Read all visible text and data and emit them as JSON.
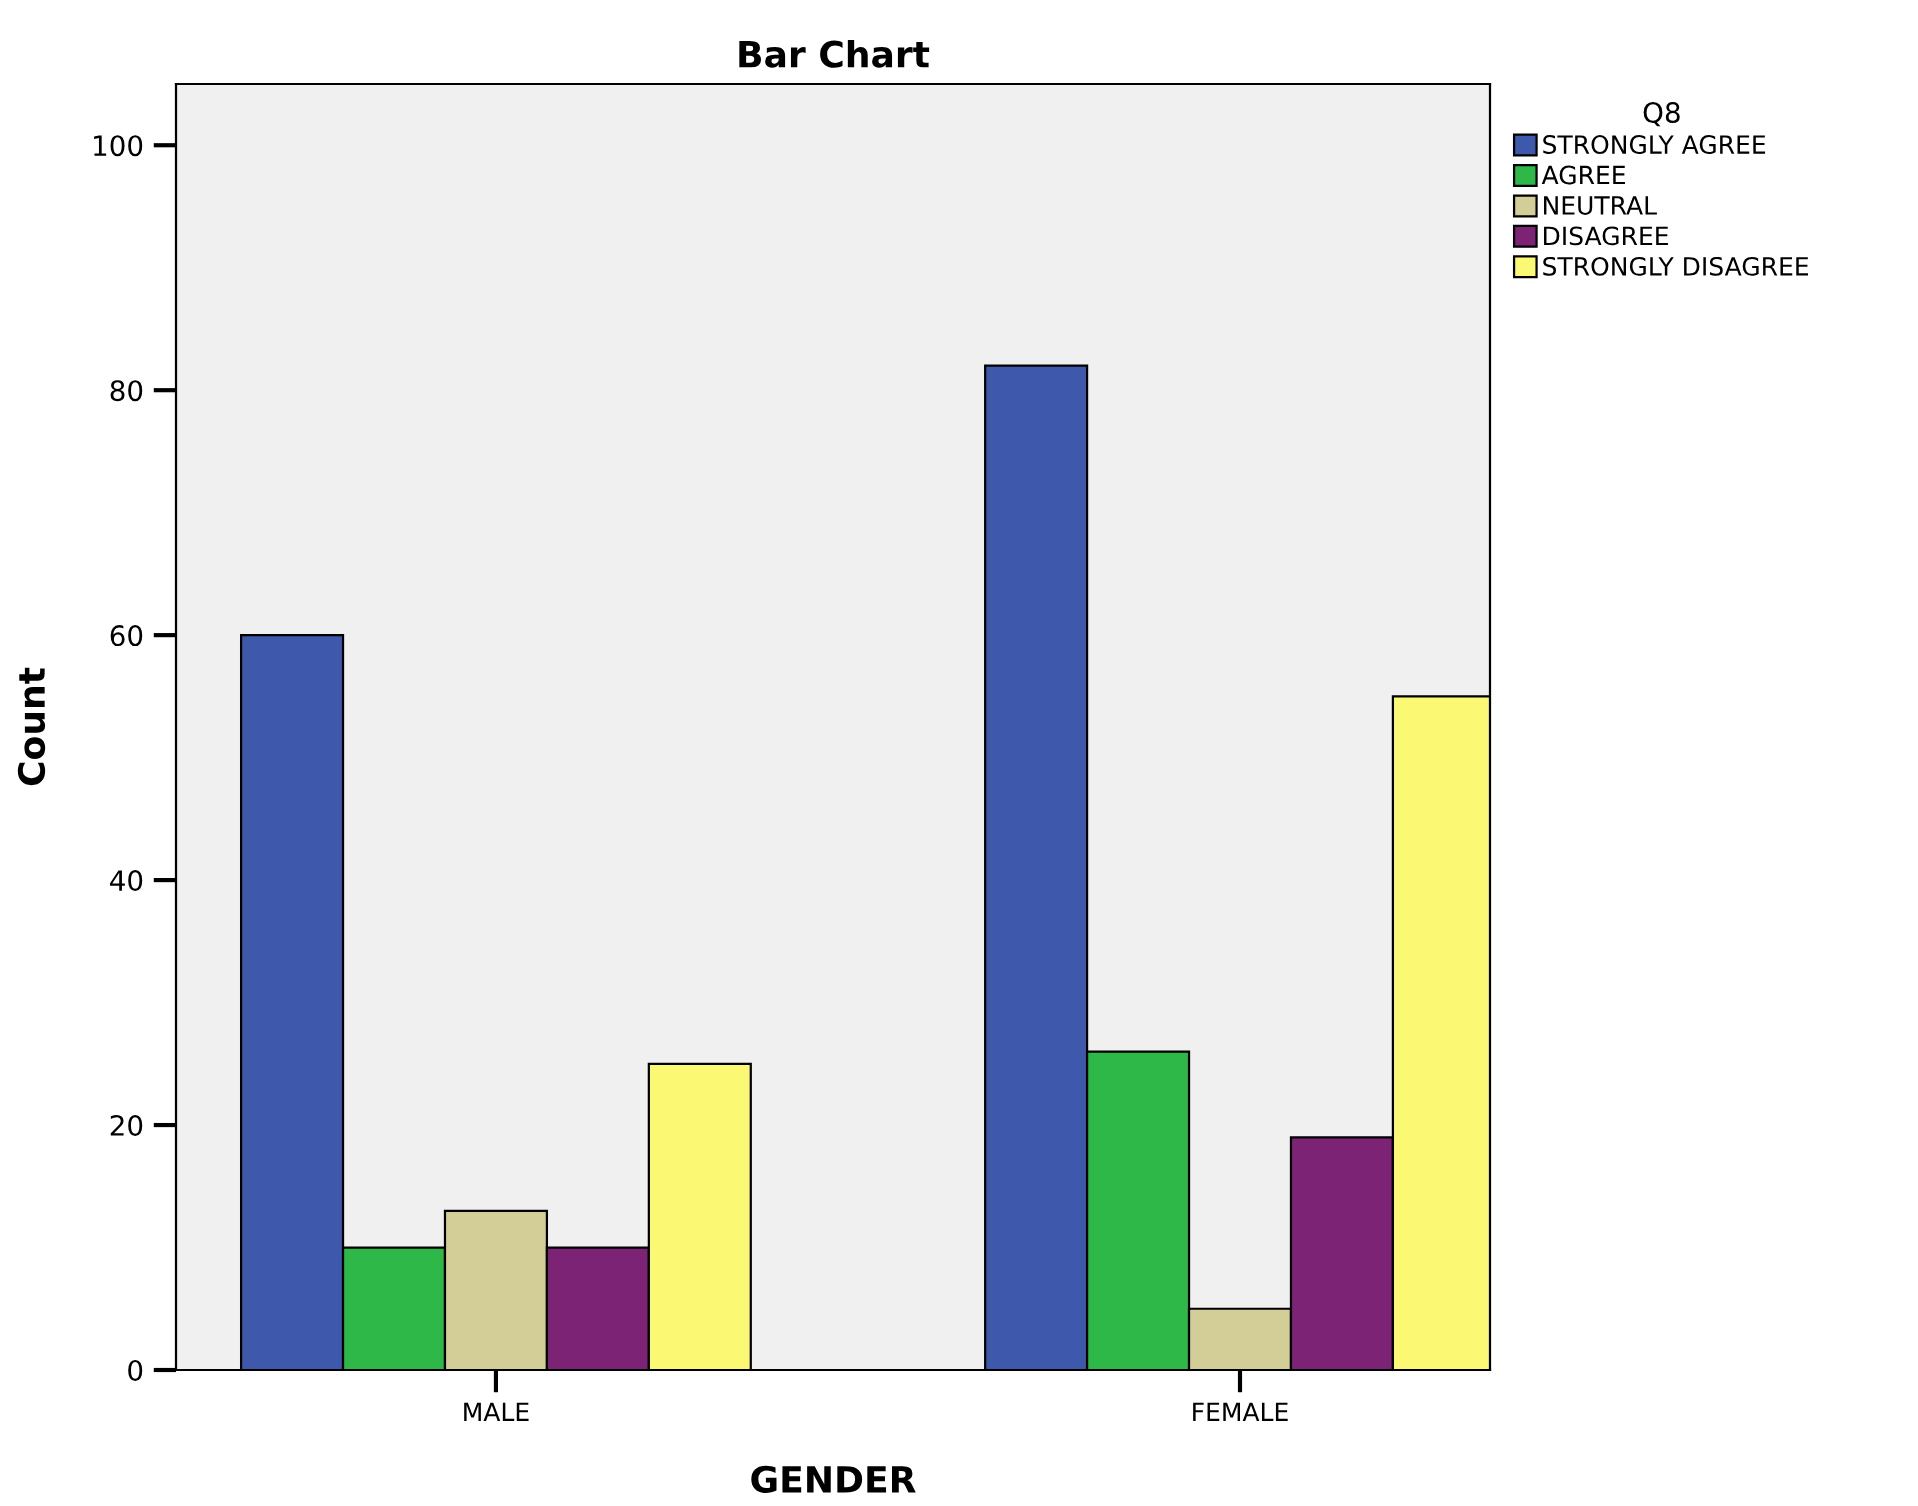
{
  "chart_data": {
    "type": "bar",
    "title": "Bar Chart",
    "xlabel": "GENDER",
    "ylabel": "Count",
    "legend_title": "Q8",
    "categories": [
      "MALE",
      "FEMALE"
    ],
    "series": [
      {
        "name": "STRONGLY AGREE",
        "color": "#3e58ac",
        "values": [
          60,
          82
        ]
      },
      {
        "name": "AGREE",
        "color": "#2eb848",
        "values": [
          10,
          26
        ]
      },
      {
        "name": "NEUTRAL",
        "color": "#d3ce97",
        "values": [
          13,
          5
        ]
      },
      {
        "name": "DISAGREE",
        "color": "#7c2375",
        "values": [
          10,
          19
        ]
      },
      {
        "name": "STRONGLY DISAGREE",
        "color": "#fbf873",
        "values": [
          25,
          55
        ]
      }
    ],
    "ylim": [
      0,
      105
    ],
    "yticks": [
      0,
      20,
      40,
      60,
      80,
      100
    ],
    "grid": false,
    "legend": "top right"
  }
}
